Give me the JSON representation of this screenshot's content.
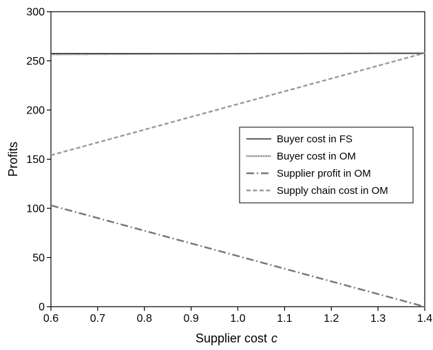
{
  "chart_data": {
    "type": "line",
    "xlabel": "Supplier cost",
    "xlabel_var": "c",
    "ylabel": "Profits",
    "xlim": [
      0.6,
      1.4
    ],
    "ylim": [
      0,
      300
    ],
    "x_ticks": [
      "0.6",
      "0.7",
      "0.8",
      "0.9",
      "1.0",
      "1.1",
      "1.2",
      "1.3",
      "1.4"
    ],
    "y_ticks": [
      "0",
      "50",
      "100",
      "150",
      "200",
      "250",
      "300"
    ],
    "grid": false,
    "legend_position": "center-right",
    "x": [
      0.6,
      1.4
    ],
    "series": [
      {
        "name": "Buyer cost in FS",
        "values": [
          257.5,
          257.5
        ],
        "color": "#000000",
        "style": "solid"
      },
      {
        "name": "Buyer cost in OM",
        "values": [
          256.5,
          258
        ],
        "color": "#555555",
        "style": "dotted"
      },
      {
        "name": "Supplier profit in OM",
        "values": [
          103,
          0
        ],
        "color": "#777777",
        "style": "dash-dot"
      },
      {
        "name": "Supply chain cost in OM",
        "values": [
          154,
          258
        ],
        "color": "#9a9a9a",
        "style": "dashed"
      }
    ]
  }
}
